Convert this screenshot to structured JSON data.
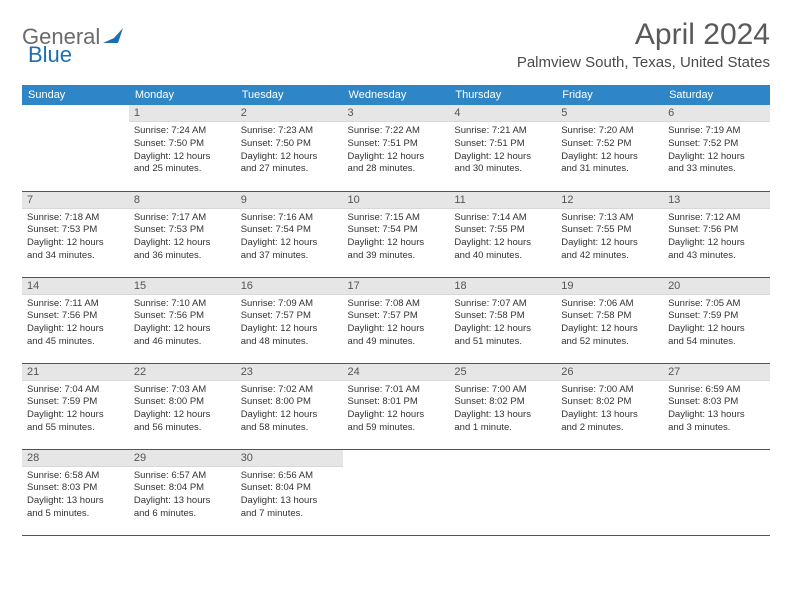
{
  "brand": {
    "part1": "General",
    "part2": "Blue"
  },
  "title": "April 2024",
  "location": "Palmview South, Texas, United States",
  "style": {
    "header_bg": "#2f86c6",
    "header_fg": "#ffffff",
    "daynum_bg": "#e6e6e6",
    "row_border": "#2f5a8a",
    "body_fontsize": 9.5,
    "title_color": "#5a5a5a",
    "logo_gray": "#6b6b6b",
    "logo_blue": "#1a6fb5"
  },
  "days_of_week": [
    "Sunday",
    "Monday",
    "Tuesday",
    "Wednesday",
    "Thursday",
    "Friday",
    "Saturday"
  ],
  "weeks": [
    [
      null,
      {
        "n": "1",
        "sr": "Sunrise: 7:24 AM",
        "ss": "Sunset: 7:50 PM",
        "d1": "Daylight: 12 hours",
        "d2": "and 25 minutes."
      },
      {
        "n": "2",
        "sr": "Sunrise: 7:23 AM",
        "ss": "Sunset: 7:50 PM",
        "d1": "Daylight: 12 hours",
        "d2": "and 27 minutes."
      },
      {
        "n": "3",
        "sr": "Sunrise: 7:22 AM",
        "ss": "Sunset: 7:51 PM",
        "d1": "Daylight: 12 hours",
        "d2": "and 28 minutes."
      },
      {
        "n": "4",
        "sr": "Sunrise: 7:21 AM",
        "ss": "Sunset: 7:51 PM",
        "d1": "Daylight: 12 hours",
        "d2": "and 30 minutes."
      },
      {
        "n": "5",
        "sr": "Sunrise: 7:20 AM",
        "ss": "Sunset: 7:52 PM",
        "d1": "Daylight: 12 hours",
        "d2": "and 31 minutes."
      },
      {
        "n": "6",
        "sr": "Sunrise: 7:19 AM",
        "ss": "Sunset: 7:52 PM",
        "d1": "Daylight: 12 hours",
        "d2": "and 33 minutes."
      }
    ],
    [
      {
        "n": "7",
        "sr": "Sunrise: 7:18 AM",
        "ss": "Sunset: 7:53 PM",
        "d1": "Daylight: 12 hours",
        "d2": "and 34 minutes."
      },
      {
        "n": "8",
        "sr": "Sunrise: 7:17 AM",
        "ss": "Sunset: 7:53 PM",
        "d1": "Daylight: 12 hours",
        "d2": "and 36 minutes."
      },
      {
        "n": "9",
        "sr": "Sunrise: 7:16 AM",
        "ss": "Sunset: 7:54 PM",
        "d1": "Daylight: 12 hours",
        "d2": "and 37 minutes."
      },
      {
        "n": "10",
        "sr": "Sunrise: 7:15 AM",
        "ss": "Sunset: 7:54 PM",
        "d1": "Daylight: 12 hours",
        "d2": "and 39 minutes."
      },
      {
        "n": "11",
        "sr": "Sunrise: 7:14 AM",
        "ss": "Sunset: 7:55 PM",
        "d1": "Daylight: 12 hours",
        "d2": "and 40 minutes."
      },
      {
        "n": "12",
        "sr": "Sunrise: 7:13 AM",
        "ss": "Sunset: 7:55 PM",
        "d1": "Daylight: 12 hours",
        "d2": "and 42 minutes."
      },
      {
        "n": "13",
        "sr": "Sunrise: 7:12 AM",
        "ss": "Sunset: 7:56 PM",
        "d1": "Daylight: 12 hours",
        "d2": "and 43 minutes."
      }
    ],
    [
      {
        "n": "14",
        "sr": "Sunrise: 7:11 AM",
        "ss": "Sunset: 7:56 PM",
        "d1": "Daylight: 12 hours",
        "d2": "and 45 minutes."
      },
      {
        "n": "15",
        "sr": "Sunrise: 7:10 AM",
        "ss": "Sunset: 7:56 PM",
        "d1": "Daylight: 12 hours",
        "d2": "and 46 minutes."
      },
      {
        "n": "16",
        "sr": "Sunrise: 7:09 AM",
        "ss": "Sunset: 7:57 PM",
        "d1": "Daylight: 12 hours",
        "d2": "and 48 minutes."
      },
      {
        "n": "17",
        "sr": "Sunrise: 7:08 AM",
        "ss": "Sunset: 7:57 PM",
        "d1": "Daylight: 12 hours",
        "d2": "and 49 minutes."
      },
      {
        "n": "18",
        "sr": "Sunrise: 7:07 AM",
        "ss": "Sunset: 7:58 PM",
        "d1": "Daylight: 12 hours",
        "d2": "and 51 minutes."
      },
      {
        "n": "19",
        "sr": "Sunrise: 7:06 AM",
        "ss": "Sunset: 7:58 PM",
        "d1": "Daylight: 12 hours",
        "d2": "and 52 minutes."
      },
      {
        "n": "20",
        "sr": "Sunrise: 7:05 AM",
        "ss": "Sunset: 7:59 PM",
        "d1": "Daylight: 12 hours",
        "d2": "and 54 minutes."
      }
    ],
    [
      {
        "n": "21",
        "sr": "Sunrise: 7:04 AM",
        "ss": "Sunset: 7:59 PM",
        "d1": "Daylight: 12 hours",
        "d2": "and 55 minutes."
      },
      {
        "n": "22",
        "sr": "Sunrise: 7:03 AM",
        "ss": "Sunset: 8:00 PM",
        "d1": "Daylight: 12 hours",
        "d2": "and 56 minutes."
      },
      {
        "n": "23",
        "sr": "Sunrise: 7:02 AM",
        "ss": "Sunset: 8:00 PM",
        "d1": "Daylight: 12 hours",
        "d2": "and 58 minutes."
      },
      {
        "n": "24",
        "sr": "Sunrise: 7:01 AM",
        "ss": "Sunset: 8:01 PM",
        "d1": "Daylight: 12 hours",
        "d2": "and 59 minutes."
      },
      {
        "n": "25",
        "sr": "Sunrise: 7:00 AM",
        "ss": "Sunset: 8:02 PM",
        "d1": "Daylight: 13 hours",
        "d2": "and 1 minute."
      },
      {
        "n": "26",
        "sr": "Sunrise: 7:00 AM",
        "ss": "Sunset: 8:02 PM",
        "d1": "Daylight: 13 hours",
        "d2": "and 2 minutes."
      },
      {
        "n": "27",
        "sr": "Sunrise: 6:59 AM",
        "ss": "Sunset: 8:03 PM",
        "d1": "Daylight: 13 hours",
        "d2": "and 3 minutes."
      }
    ],
    [
      {
        "n": "28",
        "sr": "Sunrise: 6:58 AM",
        "ss": "Sunset: 8:03 PM",
        "d1": "Daylight: 13 hours",
        "d2": "and 5 minutes."
      },
      {
        "n": "29",
        "sr": "Sunrise: 6:57 AM",
        "ss": "Sunset: 8:04 PM",
        "d1": "Daylight: 13 hours",
        "d2": "and 6 minutes."
      },
      {
        "n": "30",
        "sr": "Sunrise: 6:56 AM",
        "ss": "Sunset: 8:04 PM",
        "d1": "Daylight: 13 hours",
        "d2": "and 7 minutes."
      },
      null,
      null,
      null,
      null
    ]
  ]
}
